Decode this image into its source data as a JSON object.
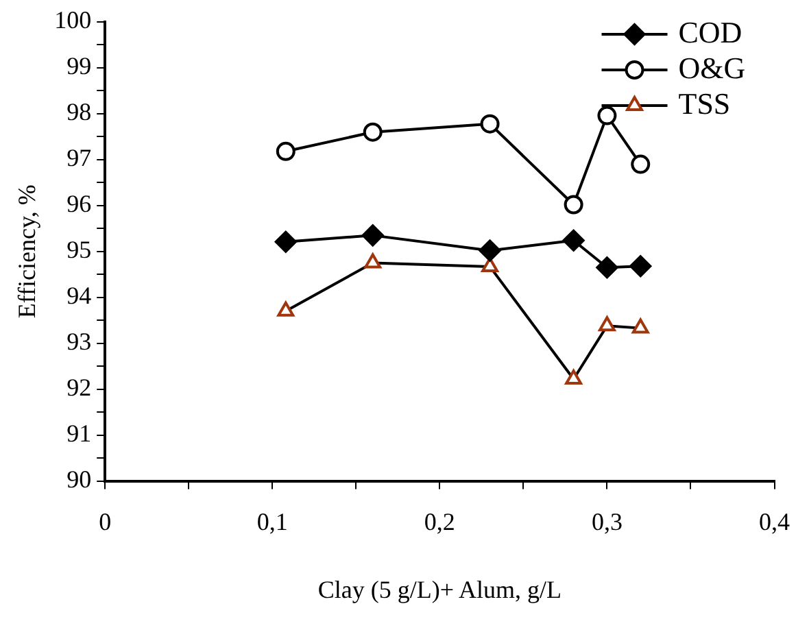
{
  "chart_data": {
    "type": "line",
    "xlabel": "Clay (5 g/L)+ Alum, g/L",
    "ylabel": "Efficiency, %",
    "xlim": [
      0,
      0.4
    ],
    "xticks": [
      {
        "value": 0,
        "label": "0"
      },
      {
        "value": 0.05,
        "label": null
      },
      {
        "value": 0.1,
        "label": "0,1"
      },
      {
        "value": 0.15,
        "label": null
      },
      {
        "value": 0.2,
        "label": "0,2"
      },
      {
        "value": 0.25,
        "label": null
      },
      {
        "value": 0.3,
        "label": "0,3"
      },
      {
        "value": 0.35,
        "label": null
      },
      {
        "value": 0.4,
        "label": "0,4"
      }
    ],
    "ylim": [
      90,
      100
    ],
    "yticks": [
      90,
      {
        "value": 90.5,
        "label": null
      },
      91,
      {
        "value": 91.5,
        "label": null
      },
      92,
      {
        "value": 92.5,
        "label": null
      },
      93,
      {
        "value": 93.5,
        "label": null
      },
      94,
      {
        "value": 94.5,
        "label": null
      },
      95,
      {
        "value": 95.5,
        "label": null
      },
      96,
      {
        "value": 96.5,
        "label": null
      },
      97,
      {
        "value": 97.5,
        "label": null
      },
      98,
      {
        "value": 98.5,
        "label": null
      },
      99,
      {
        "value": 99.5,
        "label": null
      },
      100
    ],
    "x": [
      0.108,
      0.16,
      0.23,
      0.28,
      0.3,
      0.32
    ],
    "series": [
      {
        "name": "COD",
        "color": "#000000",
        "marker": "diamond",
        "values": [
          95.21,
          95.35,
          95.02,
          95.24,
          94.65,
          94.68
        ]
      },
      {
        "name": "O&G",
        "color": "#000000",
        "marker": "circle",
        "values": [
          97.18,
          97.6,
          97.78,
          96.02,
          97.96,
          96.9
        ]
      },
      {
        "name": "TSS",
        "color": "#a0360e",
        "marker": "triangle",
        "values": [
          93.7,
          94.75,
          94.67,
          92.22,
          93.38,
          93.33
        ]
      }
    ],
    "grid": false,
    "legend": "top right",
    "line_style": "solid"
  }
}
